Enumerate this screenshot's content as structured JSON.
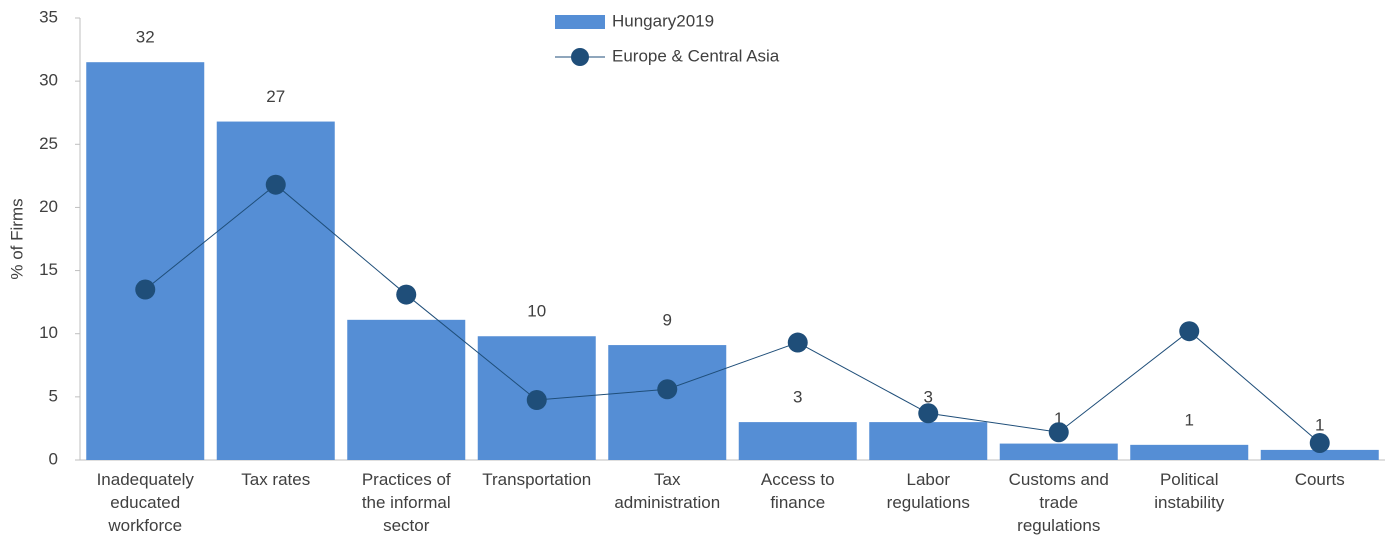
{
  "chart_data": {
    "type": "bar",
    "y_label": "% of Firms",
    "categories": [
      "Inadequately educated workforce",
      "Tax rates",
      "Practices of the informal sector",
      "Transportation",
      "Tax administration",
      "Access to finance",
      "Labor regulations",
      "Customs and trade regulations",
      "Political instability",
      "Courts"
    ],
    "series": [
      {
        "name": "Hungary2019",
        "type": "bar",
        "color": "#558ed5",
        "values": [
          31.5,
          26.8,
          11.1,
          9.8,
          9.1,
          3.0,
          3.0,
          1.3,
          1.2,
          0.8
        ],
        "value_labels": [
          "32",
          "27",
          "11",
          "10",
          "9",
          "3",
          "3",
          "1",
          "1",
          "1"
        ]
      },
      {
        "name": "Europe & Central Asia",
        "type": "line",
        "color": "#1f4e79",
        "values": [
          13.5,
          21.8,
          13.1,
          4.75,
          5.6,
          9.3,
          3.7,
          2.2,
          10.2,
          1.35
        ]
      }
    ],
    "ylim": [
      0,
      35
    ],
    "yticks": [
      0,
      5,
      10,
      15,
      20,
      25,
      30,
      35
    ],
    "grid": false
  }
}
